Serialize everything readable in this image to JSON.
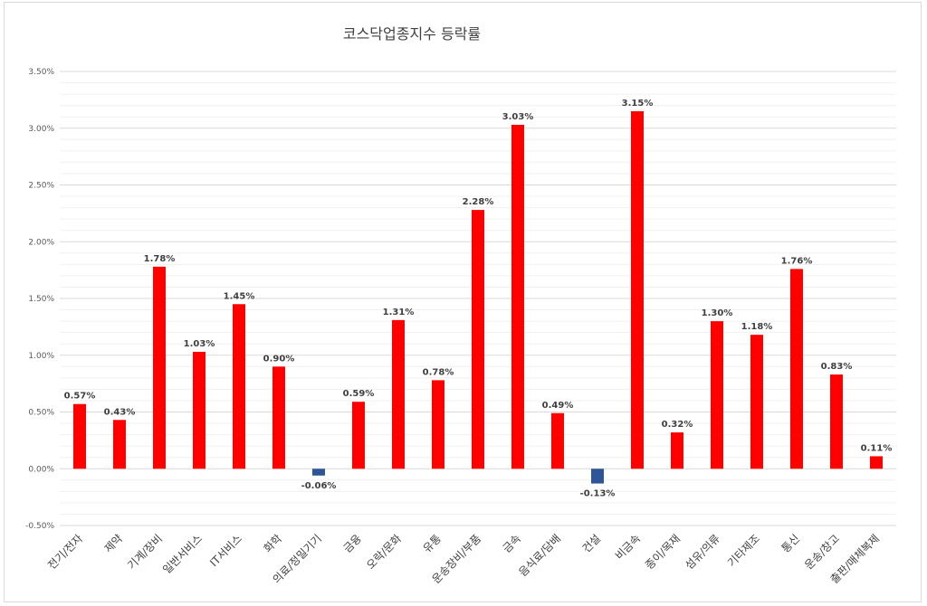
{
  "chart_data": {
    "type": "bar",
    "title": "코스닥업종지수 등락률",
    "categories": [
      "전기/전자",
      "제약",
      "기계/장비",
      "일반서비스",
      "IT서비스",
      "화학",
      "의료/정밀기기",
      "금융",
      "오락/문화",
      "유통",
      "운송장비/부품",
      "금속",
      "음식료/담배",
      "건설",
      "비금속",
      "종이/목재",
      "섬유/의류",
      "기타제조",
      "통신",
      "운송/창고",
      "출판/매체복제"
    ],
    "values": [
      0.57,
      0.43,
      1.78,
      1.03,
      1.45,
      0.9,
      -0.06,
      0.59,
      1.31,
      0.78,
      2.28,
      3.03,
      0.49,
      -0.13,
      3.15,
      0.32,
      1.3,
      1.18,
      1.76,
      0.83,
      0.11
    ],
    "data_labels": [
      "0.57%",
      "0.43%",
      "1.78%",
      "1.03%",
      "1.45%",
      "0.90%",
      "-0.06%",
      "0.59%",
      "1.31%",
      "0.78%",
      "2.28%",
      "3.03%",
      "0.49%",
      "-0.13%",
      "3.15%",
      "0.32%",
      "1.30%",
      "1.18%",
      "1.76%",
      "0.83%",
      "0.11%"
    ],
    "y_ticks": [
      -0.5,
      0,
      0.5,
      1.0,
      1.5,
      2.0,
      2.5,
      3.0,
      3.5
    ],
    "y_tick_labels": [
      "-0.50%",
      "0.00%",
      "0.50%",
      "1.00%",
      "1.50%",
      "2.00%",
      "2.50%",
      "3.00%",
      "3.50%"
    ],
    "ylim": [
      -0.5,
      3.5
    ],
    "grid": true,
    "colors": {
      "positive": "#ff0000",
      "negative": "#2f5597",
      "grid": "#d9d9d9"
    }
  }
}
